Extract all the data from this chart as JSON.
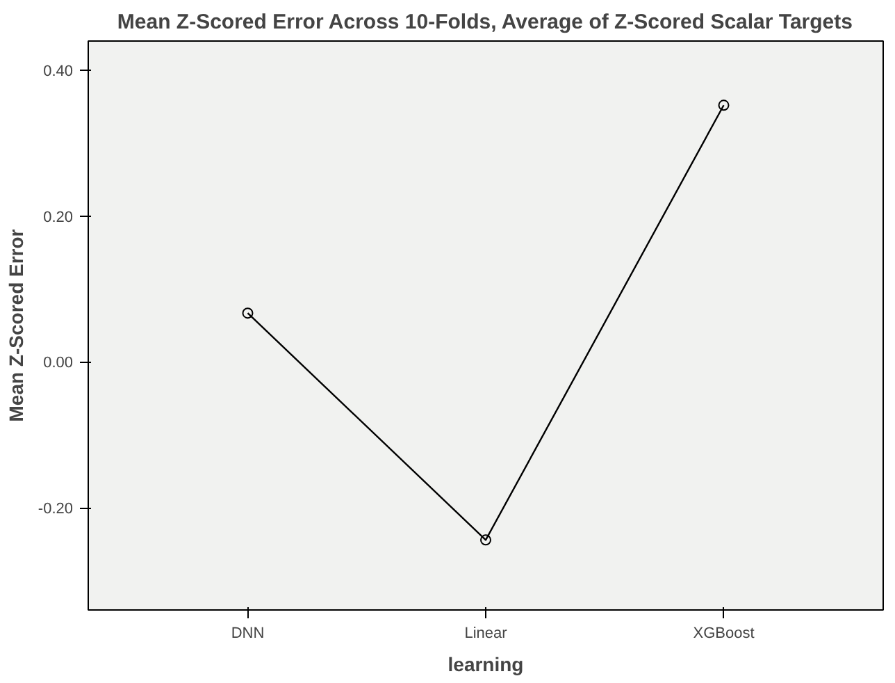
{
  "chart_data": {
    "type": "line",
    "title": "Mean Z-Scored Error Across 10-Folds, Average of Z-Scored Scalar Targets",
    "xlabel": "learning",
    "ylabel": "Mean Z-Scored Error",
    "categories": [
      "DNN",
      "Linear",
      "XGBoost"
    ],
    "series": [
      {
        "color": "#000000",
        "values": [
          0.067,
          -0.244,
          0.352
        ]
      }
    ],
    "ylim": [
      -0.34,
      0.44
    ],
    "yticks": [
      {
        "value": -0.2,
        "label": "-0.20"
      },
      {
        "value": 0,
        "label": "0.00"
      },
      {
        "value": 0.2,
        "label": "0.20"
      },
      {
        "value": 0.4,
        "label": "0.40"
      }
    ],
    "marker": "circle",
    "line_style": "solid"
  }
}
